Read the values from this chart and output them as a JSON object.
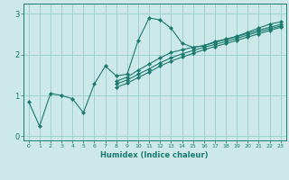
{
  "xlabel": "Humidex (Indice chaleur)",
  "background_color": "#cce8e8",
  "grid_color": "#99cccc",
  "line_color": "#1a7a6e",
  "xlim": [
    -0.5,
    23.5
  ],
  "ylim": [
    -0.1,
    3.25
  ],
  "yticks": [
    0,
    1,
    2,
    3
  ],
  "xticks": [
    0,
    1,
    2,
    3,
    4,
    5,
    6,
    7,
    8,
    9,
    10,
    11,
    12,
    13,
    14,
    15,
    16,
    17,
    18,
    19,
    20,
    21,
    22,
    23
  ],
  "series": [
    [
      0.85,
      0.25,
      1.05,
      1.0,
      0.92,
      0.58,
      1.28,
      1.72,
      1.48,
      1.52,
      2.35,
      2.9,
      2.85,
      2.65,
      2.28,
      2.18,
      2.22,
      2.32,
      2.38,
      2.45,
      2.55,
      2.65,
      2.75,
      2.8
    ],
    [
      null,
      null,
      null,
      null,
      null,
      null,
      null,
      null,
      1.35,
      1.45,
      1.62,
      1.77,
      1.92,
      2.05,
      2.12,
      2.18,
      2.22,
      2.3,
      2.37,
      2.44,
      2.52,
      2.6,
      2.67,
      2.74
    ],
    [
      null,
      null,
      null,
      null,
      null,
      null,
      null,
      null,
      1.28,
      1.38,
      1.52,
      1.65,
      1.8,
      1.92,
      2.02,
      2.1,
      2.18,
      2.25,
      2.32,
      2.4,
      2.48,
      2.56,
      2.63,
      2.7
    ],
    [
      null,
      null,
      null,
      null,
      null,
      null,
      null,
      null,
      1.2,
      1.3,
      1.44,
      1.57,
      1.72,
      1.84,
      1.94,
      2.03,
      2.12,
      2.2,
      2.27,
      2.35,
      2.43,
      2.51,
      2.59,
      2.67
    ]
  ]
}
